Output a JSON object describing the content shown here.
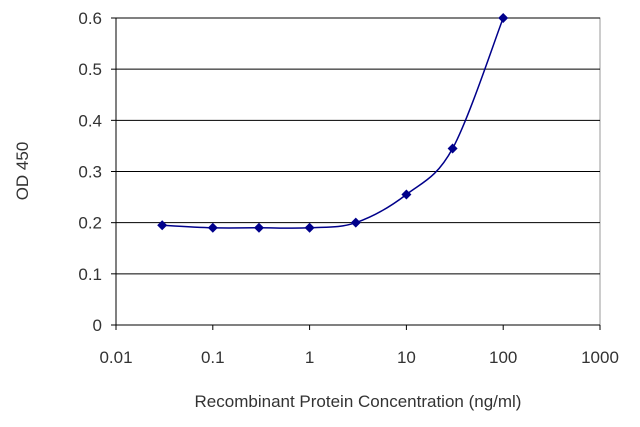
{
  "chart_data": {
    "type": "scatter",
    "title": "",
    "xlabel": "Recombinant Protein Concentration (ng/ml)",
    "ylabel": "OD 450",
    "x_scale": "log",
    "xlim": [
      0.01,
      1000
    ],
    "ylim": [
      0,
      0.6
    ],
    "x_ticks": [
      0.01,
      0.1,
      1,
      10,
      100,
      1000
    ],
    "x_tick_labels": [
      "0.01",
      "0.1",
      "1",
      "10",
      "100",
      "1000"
    ],
    "y_ticks": [
      0,
      0.1,
      0.2,
      0.3,
      0.4,
      0.5,
      0.6
    ],
    "y_tick_labels": [
      "0",
      "0.1",
      "0.2",
      "0.3",
      "0.4",
      "0.5",
      "0.6"
    ],
    "grid": "horizontal",
    "legend": "none",
    "series": [
      {
        "x": [
          0.03,
          0.1,
          0.3,
          1,
          3,
          10,
          30,
          100
        ],
        "y": [
          0.195,
          0.19,
          0.19,
          0.19,
          0.2,
          0.255,
          0.345,
          0.6
        ],
        "color": "#00008b",
        "marker": "diamond",
        "fit_line": true
      }
    ],
    "colors": {
      "grid": "#000000",
      "axis": "#000000",
      "plot_background": "#ffffff",
      "frame": "#9a9a9a"
    }
  }
}
